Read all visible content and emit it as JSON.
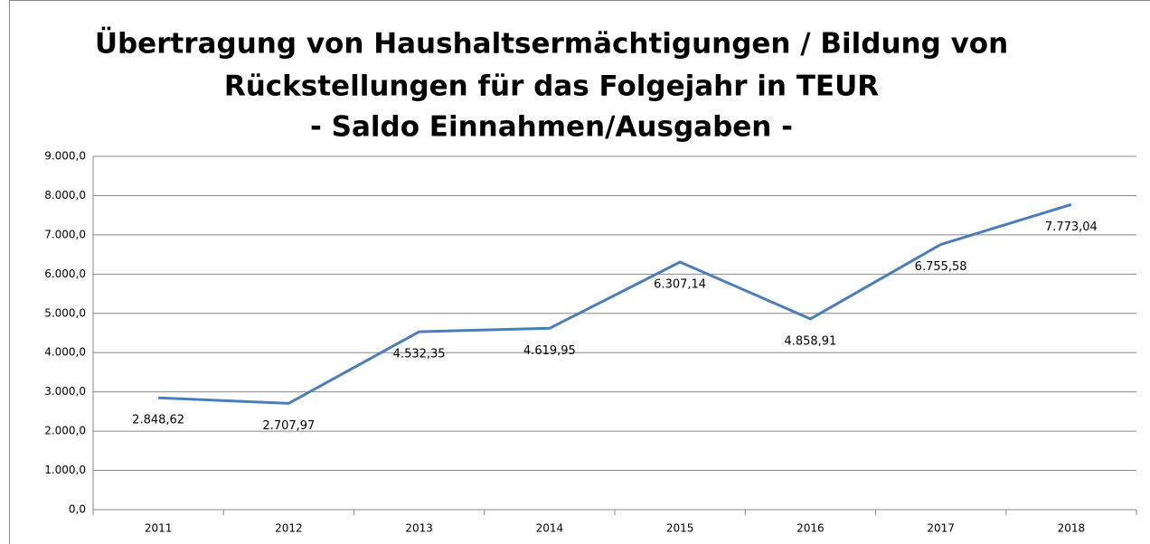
{
  "chart_data": {
    "type": "line",
    "title": [
      "Übertragung von Haushaltsermächtigungen / Bildung von",
      "Rückstellungen für das Folgejahr in TEUR",
      "- Saldo Einnahmen/Ausgaben -"
    ],
    "categories": [
      "2011",
      "2012",
      "2013",
      "2014",
      "2015",
      "2016",
      "2017",
      "2018"
    ],
    "series": [
      {
        "color": "#4a7ebb",
        "values": [
          2848.62,
          2707.97,
          4532.35,
          4619.95,
          6307.14,
          4858.91,
          6755.58,
          7773.04
        ],
        "value_labels": [
          "2.848,62",
          "2.707,97",
          "4.532,35",
          "4.619,95",
          "6.307,14",
          "4.858,91",
          "6.755,58",
          "7.773,04"
        ]
      }
    ],
    "ylim": [
      0,
      9000
    ],
    "yticks": [
      {
        "value": 0,
        "label": "0,0"
      },
      {
        "value": 1000,
        "label": "1.000,0"
      },
      {
        "value": 2000,
        "label": "2.000,0"
      },
      {
        "value": 3000,
        "label": "3.000,0"
      },
      {
        "value": 4000,
        "label": "4.000,0"
      },
      {
        "value": 5000,
        "label": "5.000,0"
      },
      {
        "value": 6000,
        "label": "6.000,0"
      },
      {
        "value": 7000,
        "label": "7.000,0"
      },
      {
        "value": 8000,
        "label": "8.000,0"
      },
      {
        "value": 9000,
        "label": "9.000,0"
      }
    ],
    "grid": true
  }
}
